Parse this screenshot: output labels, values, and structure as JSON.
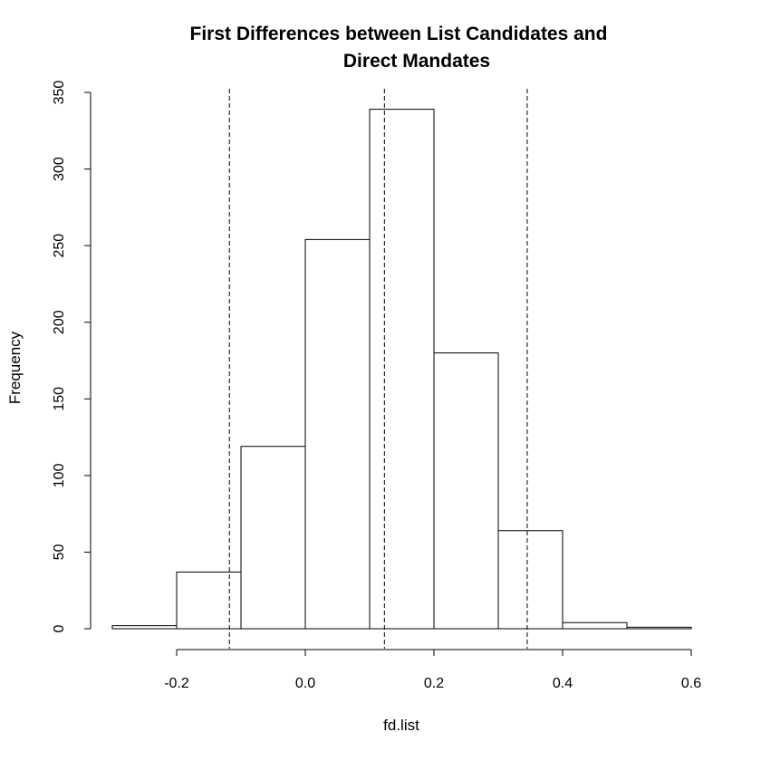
{
  "chart_data": {
    "type": "bar",
    "title_lines": [
      "First Differences between List Candidates and",
      "Direct Mandates"
    ],
    "xlabel": "fd.list",
    "ylabel": "Frequency",
    "bins": [
      {
        "start": -0.3,
        "end": -0.2,
        "count": 2
      },
      {
        "start": -0.2,
        "end": -0.1,
        "count": 37
      },
      {
        "start": -0.1,
        "end": 0.0,
        "count": 119
      },
      {
        "start": 0.0,
        "end": 0.1,
        "count": 254
      },
      {
        "start": 0.1,
        "end": 0.2,
        "count": 339
      },
      {
        "start": 0.2,
        "end": 0.3,
        "count": 180
      },
      {
        "start": 0.3,
        "end": 0.4,
        "count": 64
      },
      {
        "start": 0.4,
        "end": 0.5,
        "count": 4
      },
      {
        "start": 0.5,
        "end": 0.6,
        "count": 1
      }
    ],
    "xlim": [
      -0.3,
      0.6
    ],
    "ylim": [
      0,
      350
    ],
    "x_ticks": [
      -0.2,
      0.0,
      0.2,
      0.4,
      0.6
    ],
    "x_tick_labels": [
      "-0.2",
      "0.0",
      "0.2",
      "0.4",
      "0.6"
    ],
    "y_ticks": [
      0,
      50,
      100,
      150,
      200,
      250,
      300,
      350
    ],
    "y_tick_labels": [
      "0",
      "50",
      "100",
      "150",
      "200",
      "250",
      "300",
      "350"
    ],
    "reference_lines": [
      -0.118,
      0.123,
      0.345
    ],
    "grid": false,
    "legend": "none"
  }
}
